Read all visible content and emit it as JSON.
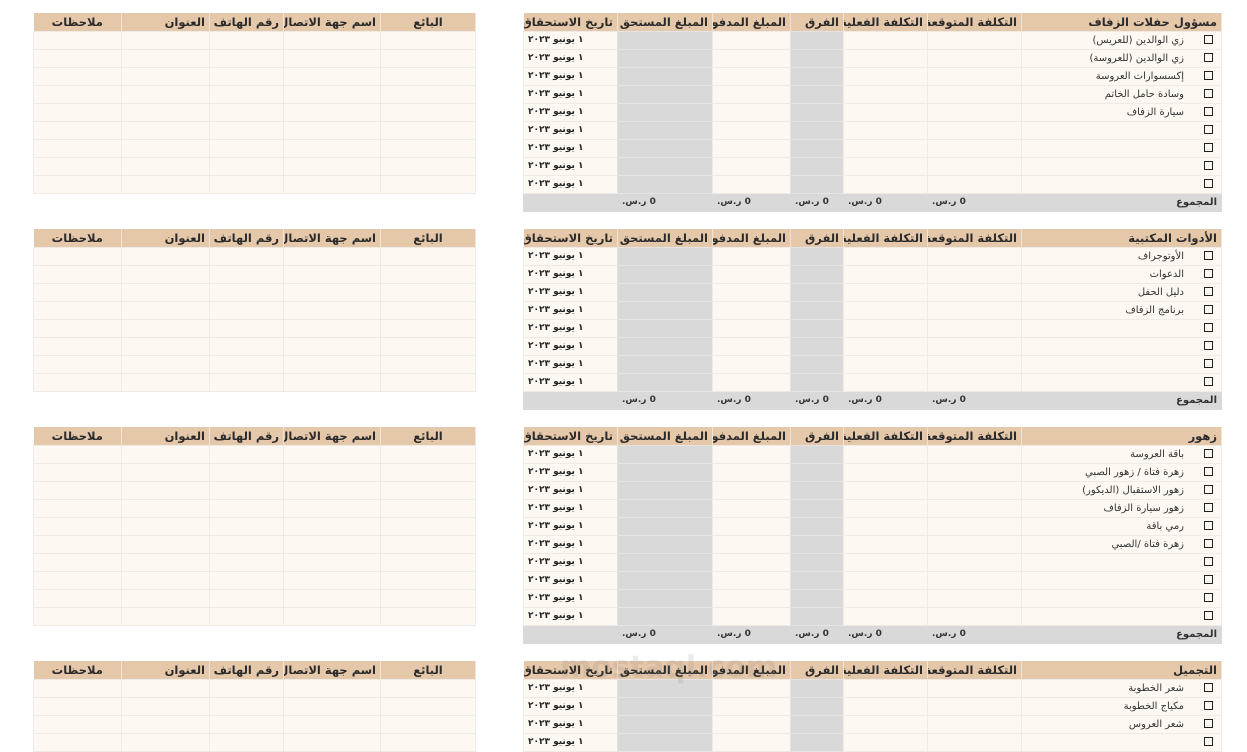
{
  "budget_headers": [
    "التكلفة المتوقعة",
    "التكلفة الفعلية",
    "الفرق",
    "المبلغ المدفوع",
    "المبلغ المستحق",
    "تاريخ الاستحقاق"
  ],
  "vendor_headers": [
    "البائع",
    "اسم جهة الاتصال",
    "رقم الهاتف",
    "العنوان",
    "ملاحظات"
  ],
  "total_label": "المجموع",
  "zero_value": "0 ر.س.",
  "due_date": "١ يونيو ٢٠٢٣",
  "watermark": "mostaql.com",
  "colors": {
    "header": "#e5c7a9",
    "body": "#fdf8f1",
    "computed": "#d9d9d9"
  },
  "sections": [
    {
      "title": "مسؤول حفلات الزفاف",
      "rows": 9,
      "items": [
        "زي الوالدين (للعريس)",
        "زي الوالدين (للعروسة)",
        "إكسسوارات العروسة",
        "وسادة حامل الخاتم",
        "سيارة الزفاف"
      ],
      "show_total": true
    },
    {
      "title": "الأدوات المكتبية",
      "rows": 8,
      "items": [
        "الأوتوجراف",
        "الدعوات",
        "دليل الحفل",
        "برنامج الزفاف"
      ],
      "show_total": true
    },
    {
      "title": "زهور",
      "rows": 10,
      "items": [
        "باقة العروسة",
        "زهرة فتاة / زهور الصبي",
        "زهور الاستقبال (الديكور)",
        "زهور سيارة الزفاف",
        "رمي باقة",
        "زهرة فتاة /الصبي"
      ],
      "show_total": true
    },
    {
      "title": "التجميل",
      "rows": 4,
      "items": [
        "شعر الخطوبة",
        "مكياج الخطوبة",
        "شعر العروس"
      ],
      "show_total": false
    }
  ]
}
